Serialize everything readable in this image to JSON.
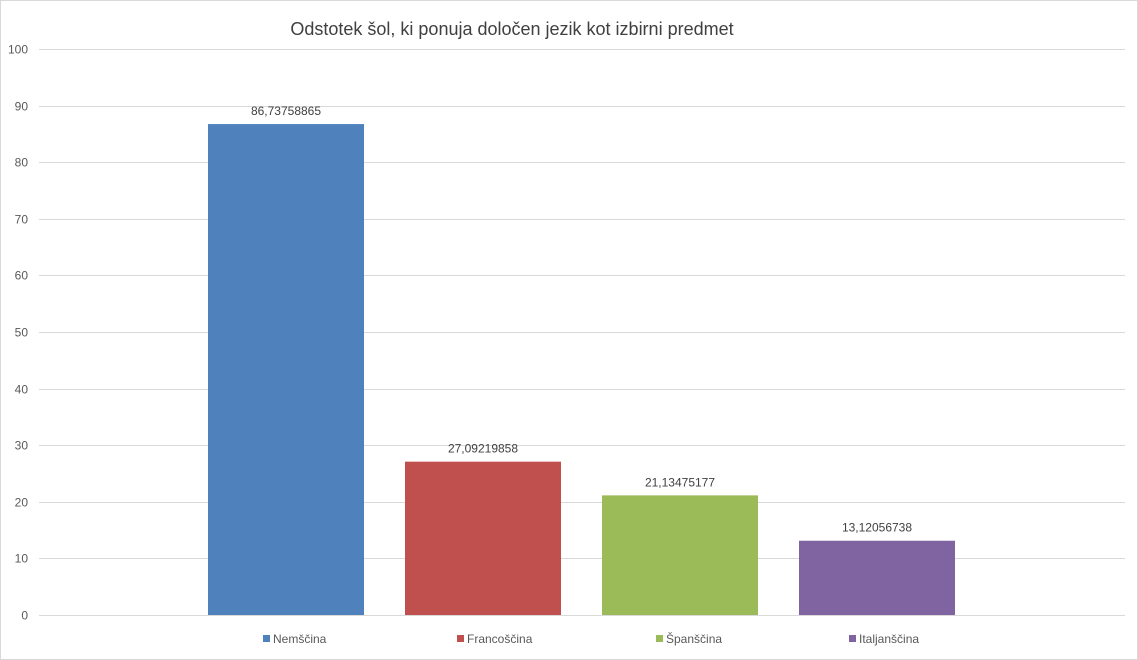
{
  "chart_data": {
    "type": "bar",
    "title": "Odstotek šol, ki ponuja določen jezik kot izbirni predmet",
    "xlabel": "",
    "ylabel": "",
    "categories": [
      "Nemščina",
      "Francoščina",
      "Španščina",
      "Italjanščina"
    ],
    "values": [
      86.73758865,
      27.09219858,
      21.13475177,
      13.12056738
    ],
    "data_labels": [
      "86,73758865",
      "27,09219858",
      "21,13475177",
      "13,12056738"
    ],
    "colors": [
      "#4f81bd",
      "#c0504d",
      "#9bbb59",
      "#8064a2"
    ],
    "ylim": [
      0,
      100
    ],
    "yticks": [
      0,
      10,
      20,
      30,
      40,
      50,
      60,
      70,
      80,
      90,
      100
    ],
    "grid": true,
    "legend": {
      "position": "bottom",
      "entries": [
        "Nemščina",
        "Francoščina",
        "Španščina",
        "Italjanščina"
      ]
    }
  }
}
